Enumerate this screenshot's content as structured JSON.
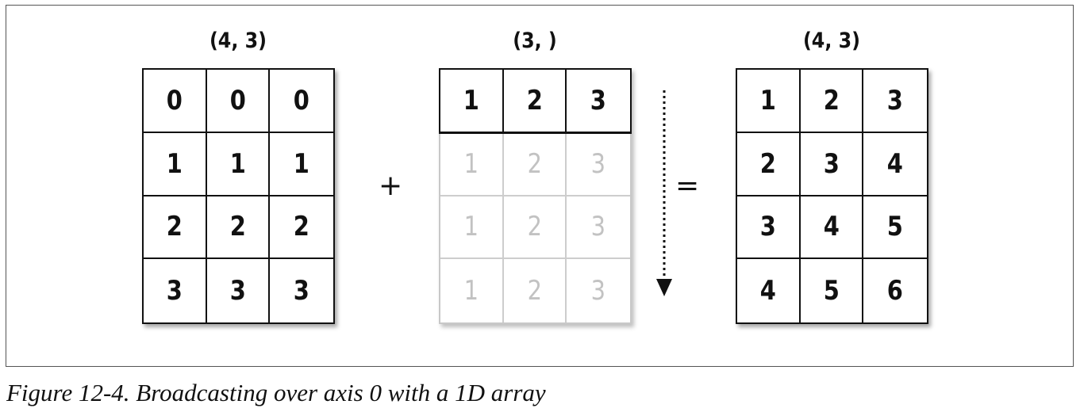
{
  "diagram": {
    "left_array": {
      "shape": "(4, 3)",
      "rows": [
        [
          "0",
          "0",
          "0"
        ],
        [
          "1",
          "1",
          "1"
        ],
        [
          "2",
          "2",
          "2"
        ],
        [
          "3",
          "3",
          "3"
        ]
      ]
    },
    "plus_sign": "+",
    "middle_array": {
      "shape": "(3, )",
      "rows": [
        [
          "1",
          "2",
          "3"
        ],
        [
          "1",
          "2",
          "3"
        ],
        [
          "1",
          "2",
          "3"
        ],
        [
          "1",
          "2",
          "3"
        ]
      ]
    },
    "equals_sign": "=",
    "result_array": {
      "shape": "(4, 3)",
      "rows": [
        [
          "1",
          "2",
          "3"
        ],
        [
          "2",
          "3",
          "4"
        ],
        [
          "3",
          "4",
          "5"
        ],
        [
          "4",
          "5",
          "6"
        ]
      ]
    }
  },
  "caption": "Figure 12-4. Broadcasting over axis 0 with a 1D array"
}
